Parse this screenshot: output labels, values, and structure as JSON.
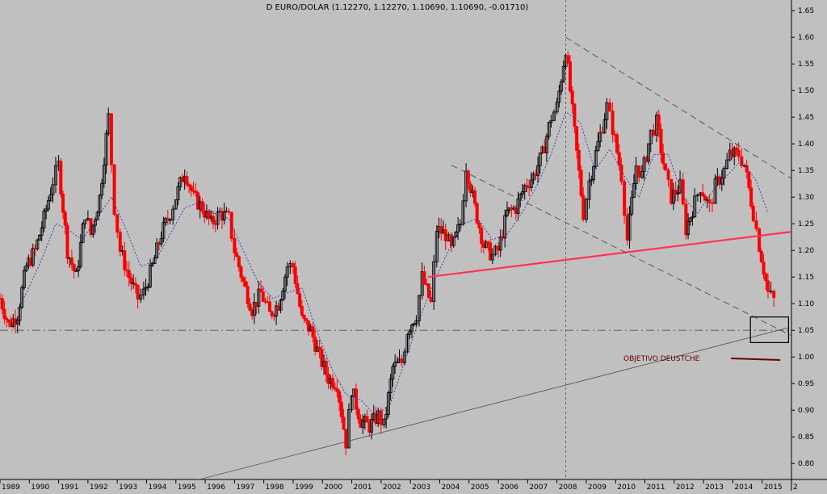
{
  "chart_data": {
    "type": "candlestick",
    "title": "D EURO/DOLAR (1.12270, 1.12270, 1.10690, 1.10690, -0.01710)",
    "ylim": [
      0.77,
      1.67
    ],
    "y_ticks": [
      "0.80",
      "0.85",
      "0.90",
      "0.95",
      "1.00",
      "1.05",
      "1.10",
      "1.15",
      "1.20",
      "1.25",
      "1.30",
      "1.35",
      "1.40",
      "1.45",
      "1.50",
      "1.55",
      "1.60",
      "1.65"
    ],
    "xlim": [
      1989.0,
      2016.0
    ],
    "x_ticks": [
      "1989",
      "1990",
      "1991",
      "1992",
      "1993",
      "1994",
      "1995",
      "1996",
      "1997",
      "1998",
      "1999",
      "2000",
      "2001",
      "2002",
      "2003",
      "2004",
      "2005",
      "2006",
      "2007",
      "2008",
      "2009",
      "2010",
      "2011",
      "2012",
      "2013",
      "2014",
      "2015",
      "2"
    ],
    "grid": false,
    "horizontal_reference": {
      "y": 1.05
    },
    "vertical_reference": {
      "x": 2008.3
    },
    "annotation": {
      "text": "OBJETIVO DEUSTCHE"
    },
    "colors": {
      "up": "#000000",
      "down": "#ff0000",
      "ma": "#3333aa",
      "trend": "#ff3355",
      "guide": "#606060",
      "annotation_line": "#6a0000",
      "background": "#c0c0c0"
    },
    "close_path": [
      [
        1989.0,
        1.11
      ],
      [
        1989.3,
        1.06
      ],
      [
        1989.6,
        1.08
      ],
      [
        1989.9,
        1.17
      ],
      [
        1990.2,
        1.2
      ],
      [
        1990.5,
        1.26
      ],
      [
        1990.8,
        1.33
      ],
      [
        1991.0,
        1.36
      ],
      [
        1991.3,
        1.2
      ],
      [
        1991.6,
        1.15
      ],
      [
        1991.9,
        1.27
      ],
      [
        1992.1,
        1.23
      ],
      [
        1992.4,
        1.3
      ],
      [
        1992.7,
        1.45
      ],
      [
        1992.9,
        1.28
      ],
      [
        1993.1,
        1.2
      ],
      [
        1993.4,
        1.15
      ],
      [
        1993.7,
        1.11
      ],
      [
        1993.9,
        1.12
      ],
      [
        1994.2,
        1.17
      ],
      [
        1994.5,
        1.23
      ],
      [
        1994.8,
        1.27
      ],
      [
        1995.0,
        1.3
      ],
      [
        1995.3,
        1.35
      ],
      [
        1995.6,
        1.3
      ],
      [
        1995.9,
        1.28
      ],
      [
        1996.2,
        1.25
      ],
      [
        1996.5,
        1.27
      ],
      [
        1996.8,
        1.26
      ],
      [
        1997.0,
        1.2
      ],
      [
        1997.3,
        1.14
      ],
      [
        1997.6,
        1.09
      ],
      [
        1997.9,
        1.12
      ],
      [
        1998.2,
        1.08
      ],
      [
        1998.5,
        1.1
      ],
      [
        1998.8,
        1.17
      ],
      [
        1999.0,
        1.17
      ],
      [
        1999.3,
        1.07
      ],
      [
        1999.6,
        1.05
      ],
      [
        1999.9,
        1.0
      ],
      [
        2000.2,
        0.96
      ],
      [
        2000.5,
        0.95
      ],
      [
        2000.8,
        0.84
      ],
      [
        2001.0,
        0.94
      ],
      [
        2001.3,
        0.88
      ],
      [
        2001.6,
        0.87
      ],
      [
        2001.9,
        0.89
      ],
      [
        2002.1,
        0.87
      ],
      [
        2002.4,
        0.98
      ],
      [
        2002.7,
        0.99
      ],
      [
        2002.9,
        1.05
      ],
      [
        2003.2,
        1.08
      ],
      [
        2003.4,
        1.15
      ],
      [
        2003.7,
        1.1
      ],
      [
        2003.9,
        1.24
      ],
      [
        2004.2,
        1.23
      ],
      [
        2004.4,
        1.2
      ],
      [
        2004.7,
        1.25
      ],
      [
        2004.9,
        1.36
      ],
      [
        2005.2,
        1.28
      ],
      [
        2005.5,
        1.21
      ],
      [
        2005.8,
        1.19
      ],
      [
        2006.0,
        1.2
      ],
      [
        2006.3,
        1.27
      ],
      [
        2006.6,
        1.28
      ],
      [
        2006.9,
        1.32
      ],
      [
        2007.2,
        1.34
      ],
      [
        2007.5,
        1.38
      ],
      [
        2007.8,
        1.45
      ],
      [
        2008.0,
        1.47
      ],
      [
        2008.3,
        1.58
      ],
      [
        2008.6,
        1.42
      ],
      [
        2008.9,
        1.27
      ],
      [
        2009.1,
        1.33
      ],
      [
        2009.4,
        1.4
      ],
      [
        2009.7,
        1.47
      ],
      [
        2009.9,
        1.43
      ],
      [
        2010.2,
        1.34
      ],
      [
        2010.4,
        1.22
      ],
      [
        2010.7,
        1.36
      ],
      [
        2010.9,
        1.34
      ],
      [
        2011.2,
        1.42
      ],
      [
        2011.4,
        1.44
      ],
      [
        2011.7,
        1.34
      ],
      [
        2011.9,
        1.3
      ],
      [
        2012.2,
        1.32
      ],
      [
        2012.4,
        1.24
      ],
      [
        2012.7,
        1.29
      ],
      [
        2012.9,
        1.32
      ],
      [
        2013.2,
        1.28
      ],
      [
        2013.4,
        1.32
      ],
      [
        2013.7,
        1.35
      ],
      [
        2013.9,
        1.38
      ],
      [
        2014.2,
        1.38
      ],
      [
        2014.4,
        1.36
      ],
      [
        2014.7,
        1.27
      ],
      [
        2014.9,
        1.21
      ],
      [
        2015.2,
        1.12
      ],
      [
        2015.4,
        1.107
      ]
    ],
    "moving_average": [
      [
        1989.6,
        1.09
      ],
      [
        1989.9,
        1.12
      ],
      [
        1990.4,
        1.18
      ],
      [
        1990.9,
        1.25
      ],
      [
        1991.3,
        1.24
      ],
      [
        1991.8,
        1.22
      ],
      [
        1992.3,
        1.26
      ],
      [
        1992.8,
        1.3
      ],
      [
        1993.3,
        1.24
      ],
      [
        1993.8,
        1.17
      ],
      [
        1994.3,
        1.18
      ],
      [
        1994.8,
        1.23
      ],
      [
        1995.3,
        1.28
      ],
      [
        1995.8,
        1.29
      ],
      [
        1996.3,
        1.27
      ],
      [
        1996.8,
        1.26
      ],
      [
        1997.3,
        1.2
      ],
      [
        1997.8,
        1.14
      ],
      [
        1998.3,
        1.11
      ],
      [
        1998.8,
        1.12
      ],
      [
        1999.3,
        1.13
      ],
      [
        1999.8,
        1.05
      ],
      [
        2000.3,
        0.98
      ],
      [
        2000.8,
        0.93
      ],
      [
        2001.3,
        0.92
      ],
      [
        2001.8,
        0.89
      ],
      [
        2002.3,
        0.91
      ],
      [
        2002.8,
        0.99
      ],
      [
        2003.3,
        1.07
      ],
      [
        2003.8,
        1.14
      ],
      [
        2004.3,
        1.2
      ],
      [
        2004.8,
        1.25
      ],
      [
        2005.3,
        1.26
      ],
      [
        2005.8,
        1.22
      ],
      [
        2006.3,
        1.23
      ],
      [
        2006.8,
        1.27
      ],
      [
        2007.3,
        1.32
      ],
      [
        2007.8,
        1.38
      ],
      [
        2008.3,
        1.46
      ],
      [
        2008.8,
        1.44
      ],
      [
        2009.3,
        1.35
      ],
      [
        2009.8,
        1.39
      ],
      [
        2010.3,
        1.34
      ],
      [
        2010.8,
        1.3
      ],
      [
        2011.3,
        1.38
      ],
      [
        2011.8,
        1.38
      ],
      [
        2012.3,
        1.3
      ],
      [
        2012.8,
        1.27
      ],
      [
        2013.3,
        1.31
      ],
      [
        2013.8,
        1.34
      ],
      [
        2014.3,
        1.37
      ],
      [
        2014.8,
        1.33
      ],
      [
        2015.2,
        1.27
      ]
    ],
    "trendlines": [
      {
        "name": "support-red",
        "color": "#ff3355",
        "width": 2.2,
        "dash": "",
        "points": [
          [
            2003.6,
            1.15
          ],
          [
            2016.0,
            1.235
          ]
        ]
      },
      {
        "name": "long-term-support",
        "color": "#505050",
        "width": 0.8,
        "dash": "",
        "points": [
          [
            1995.8,
            0.77
          ],
          [
            2015.9,
            1.055
          ]
        ]
      },
      {
        "name": "upper-resistance",
        "color": "#404040",
        "width": 0.8,
        "dash": "8 5",
        "points": [
          [
            2008.3,
            1.6
          ],
          [
            2016.0,
            1.335
          ]
        ]
      },
      {
        "name": "lower-channel",
        "color": "#404040",
        "width": 0.8,
        "dash": "8 5",
        "points": [
          [
            2004.4,
            1.36
          ],
          [
            2016.0,
            1.04
          ]
        ]
      }
    ],
    "target_box": {
      "x": [
        2014.6,
        2015.9
      ],
      "y": [
        1.027,
        1.075
      ]
    }
  }
}
